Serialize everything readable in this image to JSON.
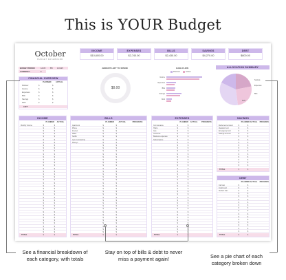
{
  "headline": "This is YOUR Budget",
  "dashboard": {
    "month": "October",
    "subtitle": "BUDGET DASHBOARD",
    "budget_period_label": "BUDGET PERIOD",
    "budget_period_value": "1/1/25",
    "currency_label": "CURRENCY",
    "currency_value": "$",
    "to_label": "TO",
    "to_value": "1/31/25"
  },
  "summary_cards": [
    {
      "label": "INCOME",
      "value": "$10,600.00"
    },
    {
      "label": "EXPENSES",
      "value": "$2,740.00"
    },
    {
      "label": "BILLS",
      "value": "$2,430.00"
    },
    {
      "label": "SAVINGS",
      "value": "$4,270.00"
    },
    {
      "label": "DEBT",
      "value": "$800.00"
    }
  ],
  "financial_overview": {
    "title": "FINANCIAL OVERVIEW",
    "col_planned": "PLANNED",
    "col_actual": "ACTUAL",
    "rows": [
      "Rollover",
      "Income",
      "Expenses",
      "Bills",
      "Savings",
      "Debt"
    ],
    "left_label": "LEFT"
  },
  "left_to_spend": {
    "title": "AMOUNT LEFT TO SPEND",
    "value": "$0.00"
  },
  "cash_flow": {
    "title": "CASH FLOW",
    "legend": [
      "Planned",
      "Actual"
    ],
    "categories": [
      "Income",
      "Expenses",
      "Bills",
      "Savings",
      "Debt"
    ]
  },
  "allocation": {
    "title": "ALLOCATION SUMMARY",
    "labels": [
      "Expenses",
      "Bills",
      "Savings",
      "Debt"
    ]
  },
  "income": {
    "title": "INCOME",
    "col_planned": "PLANNED",
    "col_actual": "ACTUAL",
    "first_row": "Monthly Income",
    "total_label": "TOTAL"
  },
  "bills": {
    "title": "BILLS",
    "col_planned": "PLANNED",
    "col_actual": "ACTUAL",
    "col_progress": "PROGRESS",
    "rows": [
      "Apartment",
      "Phone",
      "Internet",
      "Water",
      "Netflix",
      "Gym membership",
      "Disney+"
    ],
    "total_label": "TOTAL"
  },
  "expenses": {
    "title": "EXPENSES",
    "col_planned": "PLANNED",
    "col_actual": "ACTUAL",
    "col_progress": "PROGRESS",
    "rows": [
      "Car insurance",
      "Hydro",
      "Gas",
      "Groceries",
      "Business expenses",
      "Subscriptions"
    ],
    "total_label": "TOTAL"
  },
  "savings": {
    "title": "SAVINGS",
    "col_planned": "PLANNED",
    "col_actual": "ACTUAL",
    "col_progress": "PROGRESS",
    "rows": [
      "Retirement account",
      "Vacation fund",
      "Emergency fund",
      "Savings account"
    ],
    "total_label": "TOTAL"
  },
  "debt": {
    "title": "DEBT",
    "col_planned": "PLANNED",
    "col_actual": "ACTUAL",
    "col_progress": "PROGRESS",
    "rows": [
      "Car loan",
      "Credit card",
      "Student loan"
    ],
    "total_label": "TOTAL"
  },
  "captions": {
    "left": "See a financial breakdown of each category, with totals",
    "center": "Stay on top of bills & debt to never miss a payment again!",
    "right": "See a pie chart of each category broken down"
  },
  "colors": {
    "header_lavender": "#cdb8ea",
    "row_pink": "#f7dde9",
    "accent_purple": "#8b67c9",
    "accent_pink": "#e7a9c6"
  }
}
